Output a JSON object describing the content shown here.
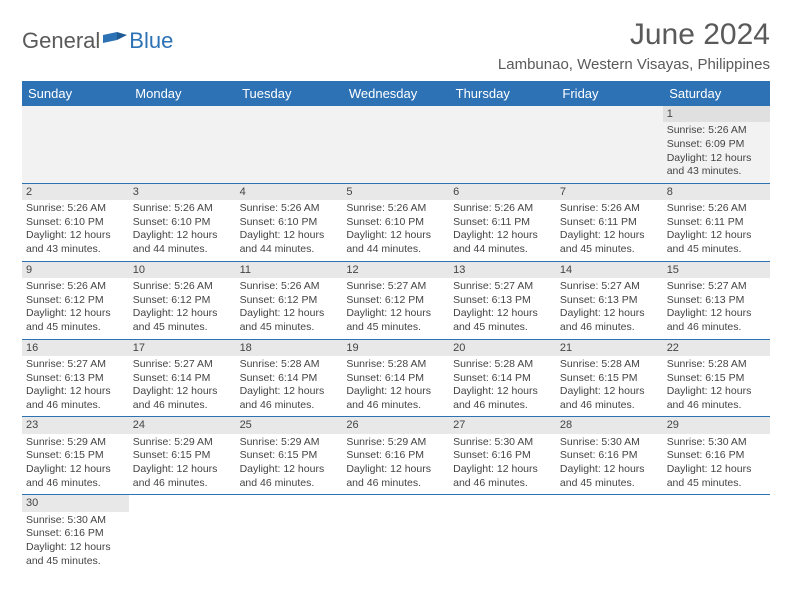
{
  "logo": {
    "part1": "General",
    "part2": "Blue"
  },
  "title": "June 2024",
  "location": "Lambunao, Western Visayas, Philippines",
  "colors": {
    "accent": "#2d72b5",
    "header_text": "#ffffff",
    "text": "#444444",
    "title_text": "#5a5a5a",
    "band_bg": "#e8e8e8",
    "row1_bg": "#f2f2f2"
  },
  "weekdays": [
    "Sunday",
    "Monday",
    "Tuesday",
    "Wednesday",
    "Thursday",
    "Friday",
    "Saturday"
  ],
  "days": {
    "1": {
      "sunrise": "5:26 AM",
      "sunset": "6:09 PM",
      "daylight": "12 hours and 43 minutes."
    },
    "2": {
      "sunrise": "5:26 AM",
      "sunset": "6:10 PM",
      "daylight": "12 hours and 43 minutes."
    },
    "3": {
      "sunrise": "5:26 AM",
      "sunset": "6:10 PM",
      "daylight": "12 hours and 44 minutes."
    },
    "4": {
      "sunrise": "5:26 AM",
      "sunset": "6:10 PM",
      "daylight": "12 hours and 44 minutes."
    },
    "5": {
      "sunrise": "5:26 AM",
      "sunset": "6:10 PM",
      "daylight": "12 hours and 44 minutes."
    },
    "6": {
      "sunrise": "5:26 AM",
      "sunset": "6:11 PM",
      "daylight": "12 hours and 44 minutes."
    },
    "7": {
      "sunrise": "5:26 AM",
      "sunset": "6:11 PM",
      "daylight": "12 hours and 45 minutes."
    },
    "8": {
      "sunrise": "5:26 AM",
      "sunset": "6:11 PM",
      "daylight": "12 hours and 45 minutes."
    },
    "9": {
      "sunrise": "5:26 AM",
      "sunset": "6:12 PM",
      "daylight": "12 hours and 45 minutes."
    },
    "10": {
      "sunrise": "5:26 AM",
      "sunset": "6:12 PM",
      "daylight": "12 hours and 45 minutes."
    },
    "11": {
      "sunrise": "5:26 AM",
      "sunset": "6:12 PM",
      "daylight": "12 hours and 45 minutes."
    },
    "12": {
      "sunrise": "5:27 AM",
      "sunset": "6:12 PM",
      "daylight": "12 hours and 45 minutes."
    },
    "13": {
      "sunrise": "5:27 AM",
      "sunset": "6:13 PM",
      "daylight": "12 hours and 45 minutes."
    },
    "14": {
      "sunrise": "5:27 AM",
      "sunset": "6:13 PM",
      "daylight": "12 hours and 46 minutes."
    },
    "15": {
      "sunrise": "5:27 AM",
      "sunset": "6:13 PM",
      "daylight": "12 hours and 46 minutes."
    },
    "16": {
      "sunrise": "5:27 AM",
      "sunset": "6:13 PM",
      "daylight": "12 hours and 46 minutes."
    },
    "17": {
      "sunrise": "5:27 AM",
      "sunset": "6:14 PM",
      "daylight": "12 hours and 46 minutes."
    },
    "18": {
      "sunrise": "5:28 AM",
      "sunset": "6:14 PM",
      "daylight": "12 hours and 46 minutes."
    },
    "19": {
      "sunrise": "5:28 AM",
      "sunset": "6:14 PM",
      "daylight": "12 hours and 46 minutes."
    },
    "20": {
      "sunrise": "5:28 AM",
      "sunset": "6:14 PM",
      "daylight": "12 hours and 46 minutes."
    },
    "21": {
      "sunrise": "5:28 AM",
      "sunset": "6:15 PM",
      "daylight": "12 hours and 46 minutes."
    },
    "22": {
      "sunrise": "5:28 AM",
      "sunset": "6:15 PM",
      "daylight": "12 hours and 46 minutes."
    },
    "23": {
      "sunrise": "5:29 AM",
      "sunset": "6:15 PM",
      "daylight": "12 hours and 46 minutes."
    },
    "24": {
      "sunrise": "5:29 AM",
      "sunset": "6:15 PM",
      "daylight": "12 hours and 46 minutes."
    },
    "25": {
      "sunrise": "5:29 AM",
      "sunset": "6:15 PM",
      "daylight": "12 hours and 46 minutes."
    },
    "26": {
      "sunrise": "5:29 AM",
      "sunset": "6:16 PM",
      "daylight": "12 hours and 46 minutes."
    },
    "27": {
      "sunrise": "5:30 AM",
      "sunset": "6:16 PM",
      "daylight": "12 hours and 46 minutes."
    },
    "28": {
      "sunrise": "5:30 AM",
      "sunset": "6:16 PM",
      "daylight": "12 hours and 45 minutes."
    },
    "29": {
      "sunrise": "5:30 AM",
      "sunset": "6:16 PM",
      "daylight": "12 hours and 45 minutes."
    },
    "30": {
      "sunrise": "5:30 AM",
      "sunset": "6:16 PM",
      "daylight": "12 hours and 45 minutes."
    }
  },
  "labels": {
    "sunrise": "Sunrise: ",
    "sunset": "Sunset: ",
    "daylight": "Daylight: "
  },
  "grid": [
    [
      null,
      null,
      null,
      null,
      null,
      null,
      "1"
    ],
    [
      "2",
      "3",
      "4",
      "5",
      "6",
      "7",
      "8"
    ],
    [
      "9",
      "10",
      "11",
      "12",
      "13",
      "14",
      "15"
    ],
    [
      "16",
      "17",
      "18",
      "19",
      "20",
      "21",
      "22"
    ],
    [
      "23",
      "24",
      "25",
      "26",
      "27",
      "28",
      "29"
    ],
    [
      "30",
      null,
      null,
      null,
      null,
      null,
      null
    ]
  ]
}
